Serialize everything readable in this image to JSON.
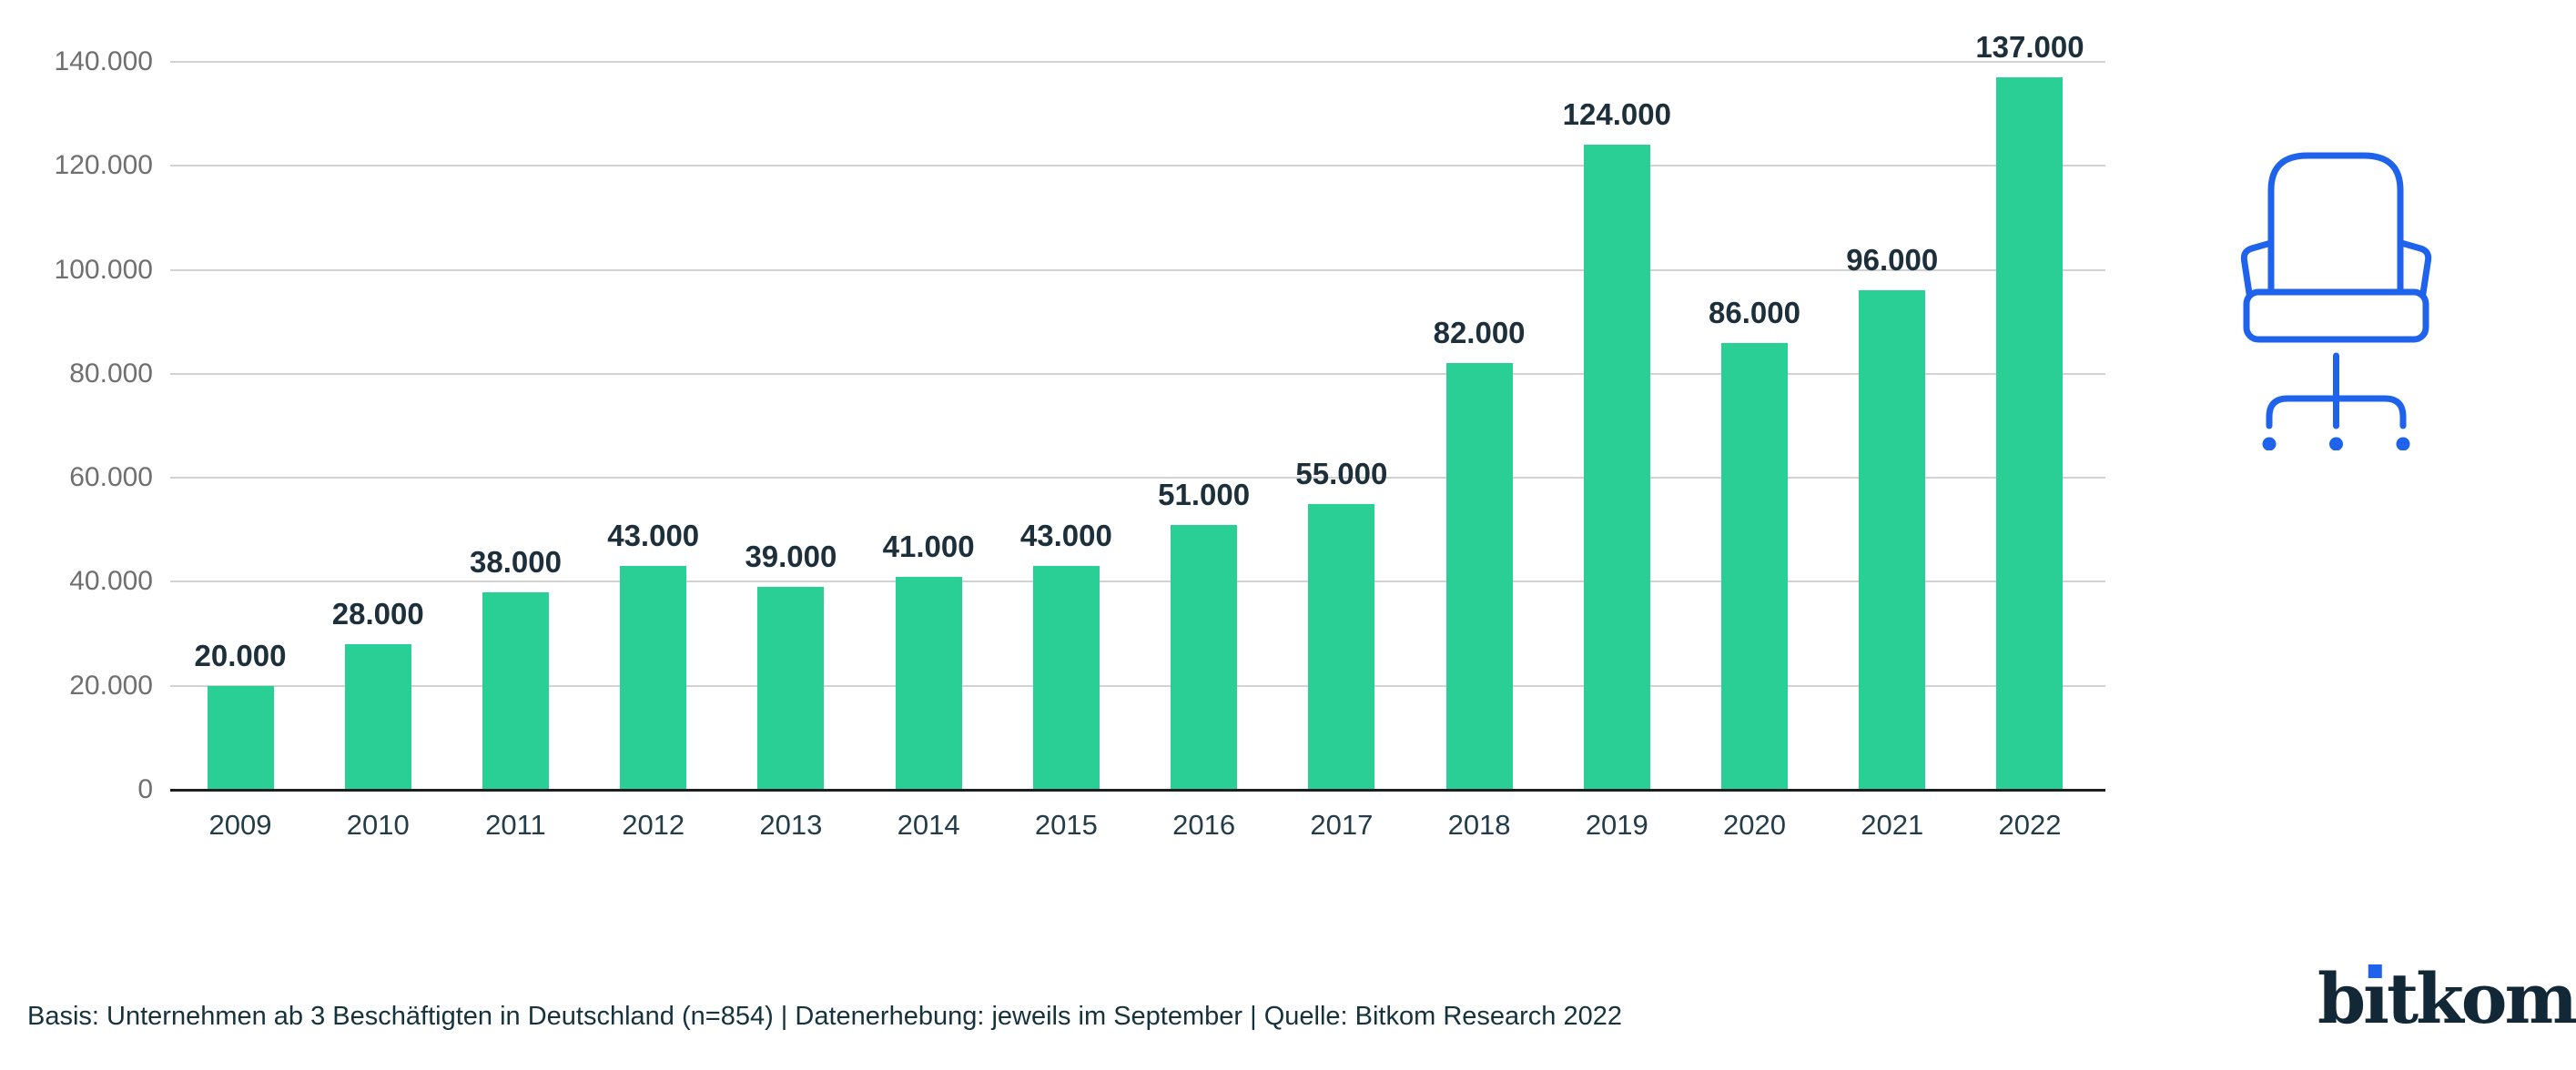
{
  "chart_data": {
    "type": "bar",
    "title": "",
    "xlabel": "",
    "ylabel": "",
    "categories": [
      "2009",
      "2010",
      "2011",
      "2012",
      "2013",
      "2014",
      "2015",
      "2016",
      "2017",
      "2018",
      "2019",
      "2020",
      "2021",
      "2022"
    ],
    "values": [
      20000,
      28000,
      38000,
      43000,
      39000,
      41000,
      43000,
      51000,
      55000,
      82000,
      124000,
      86000,
      96000,
      137000
    ],
    "value_labels": [
      "20.000",
      "28.000",
      "38.000",
      "43.000",
      "39.000",
      "41.000",
      "43.000",
      "51.000",
      "55.000",
      "82.000",
      "124.000",
      "86.000",
      "96.000",
      "137.000"
    ],
    "ylim": [
      0,
      140000
    ],
    "ytick_values": [
      0,
      20000,
      40000,
      60000,
      80000,
      100000,
      120000,
      140000
    ],
    "ytick_labels": [
      "0",
      "20.000",
      "40.000",
      "60.000",
      "80.000",
      "100.000",
      "120.000",
      "140.000"
    ],
    "grid": true,
    "legend": false,
    "bar_color": "#2acf96",
    "value_label_color": "#1c2f3a",
    "axis_label_color": "#233c48",
    "ytick_color": "#6f6f6f"
  },
  "footer": {
    "text": "Basis: Unternehmen ab 3 Beschäftigten in Deutschland (n=854) | Datenerhebung: jeweils im September | Quelle: Bitkom Research 2022"
  },
  "logo": {
    "text": "bitkom",
    "color": "#132837",
    "dot_color": "#1f62ec"
  },
  "icons": {
    "office_chair": "office-chair-icon",
    "office_chair_color": "#1f62ec"
  }
}
